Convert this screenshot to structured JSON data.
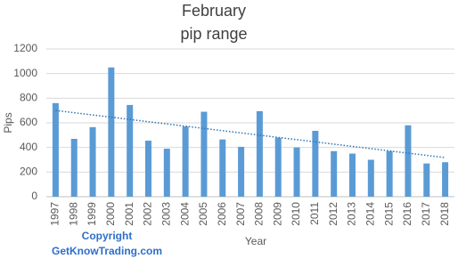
{
  "chart_data": {
    "type": "bar",
    "title": [
      "February",
      "pip range"
    ],
    "x_label": "Year",
    "y_label": "Pips",
    "watermark": [
      "Copyright",
      "GetKnowTrading.com"
    ],
    "categories": [
      "1997",
      "1998",
      "1999",
      "2000",
      "2001",
      "2002",
      "2003",
      "2004",
      "2005",
      "2006",
      "2007",
      "2008",
      "2009",
      "2010",
      "2011",
      "2012",
      "2013",
      "2014",
      "2015",
      "2016",
      "2017",
      "2018"
    ],
    "values": [
      760,
      470,
      565,
      1050,
      745,
      455,
      390,
      570,
      690,
      465,
      405,
      695,
      480,
      400,
      535,
      370,
      350,
      300,
      370,
      580,
      270,
      280
    ],
    "color": "#5b9bd5",
    "trendline": true,
    "trendline_color": "#2e75b6",
    "ylim": [
      0,
      1200
    ],
    "yticks": [
      0,
      200,
      400,
      600,
      800,
      1000,
      1200
    ],
    "grid": true
  }
}
